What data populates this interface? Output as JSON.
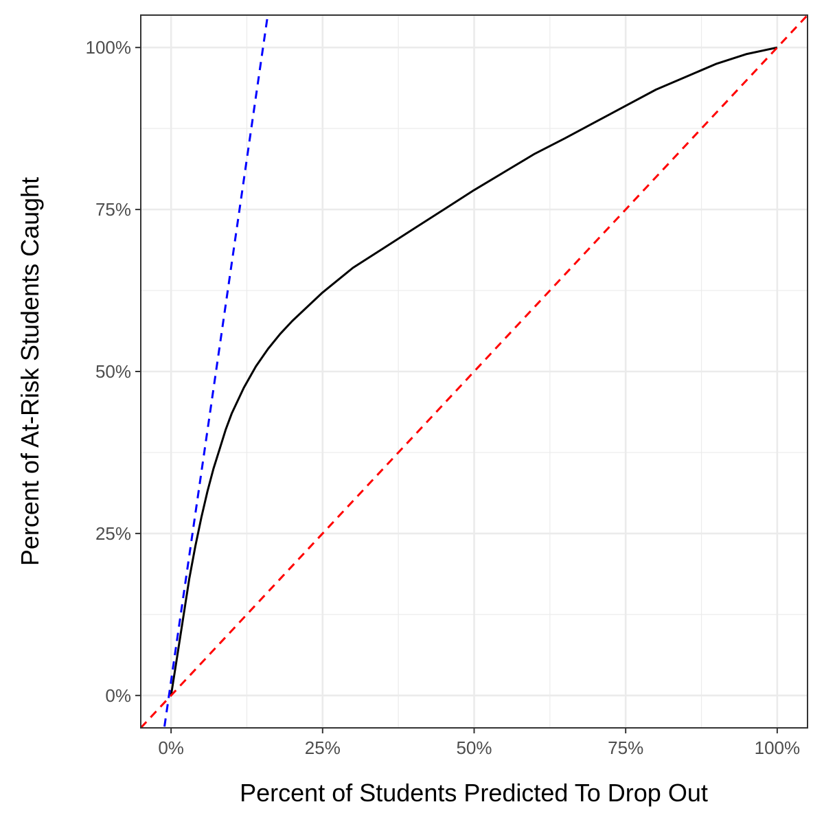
{
  "chart_data": {
    "type": "line",
    "title": "",
    "xlabel": "Percent of Students Predicted To Drop Out",
    "ylabel": "Percent of At-Risk Students Caught",
    "xlim": [
      -0.05,
      1.05
    ],
    "ylim": [
      -0.05,
      1.05
    ],
    "x_ticks": [
      0,
      0.25,
      0.5,
      0.75,
      1.0
    ],
    "x_tick_labels": [
      "0%",
      "25%",
      "50%",
      "75%",
      "100%"
    ],
    "y_ticks": [
      0,
      0.25,
      0.5,
      0.75,
      1.0
    ],
    "y_tick_labels": [
      "0%",
      "25%",
      "50%",
      "75%",
      "100%"
    ],
    "minor_breaks": [
      0.125,
      0.375,
      0.625,
      0.875
    ],
    "grid": true,
    "panel_border": true,
    "series": [
      {
        "style": "solid",
        "color": "#000000",
        "x": [
          0,
          0.01,
          0.02,
          0.03,
          0.04,
          0.05,
          0.06,
          0.07,
          0.08,
          0.09,
          0.1,
          0.12,
          0.14,
          0.16,
          0.18,
          0.2,
          0.25,
          0.3,
          0.35,
          0.4,
          0.45,
          0.5,
          0.55,
          0.6,
          0.65,
          0.7,
          0.75,
          0.8,
          0.85,
          0.9,
          0.95,
          1.0
        ],
        "y": [
          0,
          0.06,
          0.12,
          0.18,
          0.23,
          0.275,
          0.315,
          0.35,
          0.38,
          0.41,
          0.435,
          0.475,
          0.508,
          0.535,
          0.558,
          0.578,
          0.622,
          0.66,
          0.69,
          0.72,
          0.75,
          0.78,
          0.808,
          0.836,
          0.86,
          0.885,
          0.91,
          0.935,
          0.955,
          0.975,
          0.99,
          1.0
        ]
      },
      {
        "style": "dashed",
        "color": "#0000ff",
        "x": [
          -0.0143,
          0.1595
        ],
        "y": [
          -0.07,
          1.05
        ]
      },
      {
        "style": "dashed",
        "color": "#ff0000",
        "x": [
          -0.05,
          1.05
        ],
        "y": [
          -0.05,
          1.05
        ]
      }
    ]
  }
}
